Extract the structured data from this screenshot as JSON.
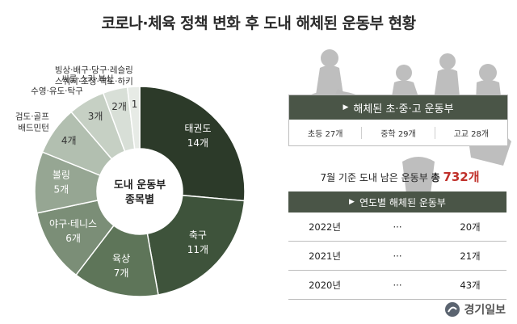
{
  "title": "코로나·체육 정책 변화 후 도내 해체된 운동부 현황",
  "chart_data": {
    "type": "pie",
    "center_label": [
      "도내 운동부",
      "종목별"
    ],
    "slices": [
      {
        "label": "태권도",
        "value": 14,
        "value_text": "14개",
        "color": "#2c3a29"
      },
      {
        "label": "축구",
        "value": 11,
        "value_text": "11개",
        "color": "#3e533b"
      },
      {
        "label": "육상",
        "value": 7,
        "value_text": "7개",
        "color": "#5e7559"
      },
      {
        "label": "야구·테니스",
        "value": 6,
        "value_text": "6개",
        "color": "#7b8e77"
      },
      {
        "label": "볼링",
        "value": 5,
        "value_text": "5개",
        "color": "#96a693"
      },
      {
        "label": "검도·골프\n배드민턴",
        "value": 4,
        "value_text": "4개",
        "color": "#b2bfb0"
      },
      {
        "label": "수영·유도·탁구",
        "value": 3,
        "value_text": "3개",
        "color": "#c6d0c4"
      },
      {
        "label": "씨름·스키·복싱",
        "value": 2,
        "value_text": "2개",
        "color": "#d8dfd7"
      },
      {
        "label": "빙상·배구·당구·레슬링\n스쿼시·조정·역도·하키",
        "value": 1,
        "value_text": "1",
        "color": "#e7ebe6"
      }
    ]
  },
  "school_box": {
    "header": "해체된 초·중·고 운동부",
    "cells": [
      "초등 27개",
      "중학 29개",
      "고교 28개"
    ]
  },
  "remaining": {
    "prefix": "7월 기준 도내 남은 운동부",
    "emph": "총",
    "value": "732개"
  },
  "yearly": {
    "header": "연도별 해체된 운동부",
    "rows": [
      {
        "year": "2022년",
        "dots": "···",
        "count": "20개"
      },
      {
        "year": "2021년",
        "dots": "···",
        "count": "21개"
      },
      {
        "year": "2020년",
        "dots": "···",
        "count": "43개"
      }
    ]
  },
  "logo_text": "경기일보",
  "colors": {
    "header_bg": "#4a5547",
    "accent_red": "#c0302a"
  }
}
